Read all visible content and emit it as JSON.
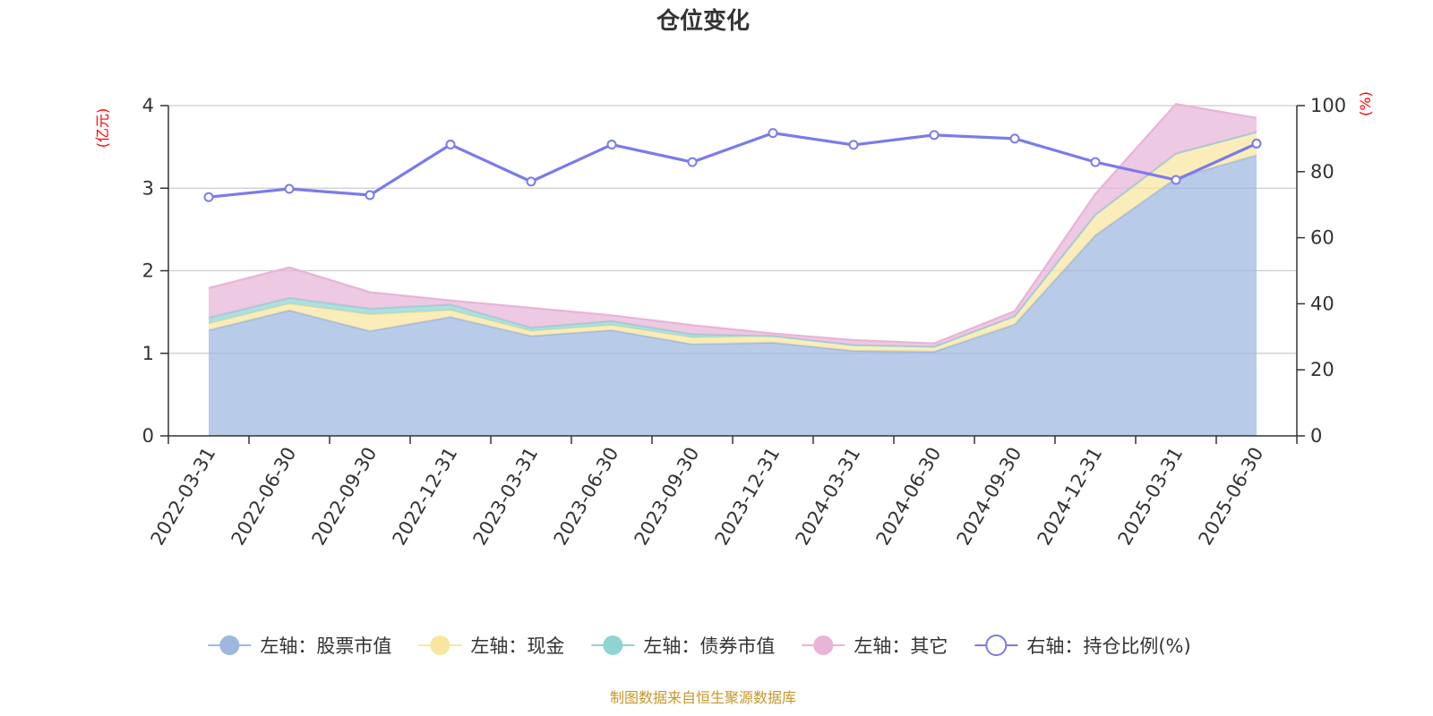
{
  "chart_data": {
    "type": "area",
    "title": "仓位变化",
    "left_axis_unit": "(亿元)",
    "right_axis_unit": "(%)",
    "x": [
      "2022-03-31",
      "2022-06-30",
      "2022-09-30",
      "2022-12-31",
      "2023-03-31",
      "2023-06-30",
      "2023-09-30",
      "2023-12-31",
      "2024-03-31",
      "2024-06-30",
      "2024-09-30",
      "2024-12-31",
      "2025-03-31",
      "2025-06-30"
    ],
    "ylim_left": [
      0,
      4
    ],
    "yticks_left": [
      "0",
      "1",
      "2",
      "3",
      "4"
    ],
    "ylim_right": [
      0,
      100
    ],
    "yticks_right": [
      "0",
      "20",
      "40",
      "60",
      "80",
      "100"
    ],
    "stacked": true,
    "grid": true,
    "legend_position": "bottom",
    "series": [
      {
        "name": "左轴：股票市值",
        "axis": "left",
        "color": "#9db7e0",
        "values": [
          1.28,
          1.52,
          1.27,
          1.44,
          1.21,
          1.28,
          1.11,
          1.13,
          1.03,
          1.02,
          1.35,
          2.43,
          3.12,
          3.4
        ]
      },
      {
        "name": "左轴：现金",
        "axis": "left",
        "color": "#f8e6a0",
        "values": [
          0.08,
          0.08,
          0.2,
          0.08,
          0.06,
          0.06,
          0.08,
          0.08,
          0.07,
          0.06,
          0.1,
          0.25,
          0.3,
          0.28
        ]
      },
      {
        "name": "左轴：债券市值",
        "axis": "left",
        "color": "#8fd3d3",
        "values": [
          0.07,
          0.07,
          0.07,
          0.07,
          0.04,
          0.05,
          0.04,
          0.0,
          0.0,
          0.0,
          0.0,
          0.0,
          0.0,
          0.0
        ]
      },
      {
        "name": "左轴：其它",
        "axis": "left",
        "color": "#e8b4d8",
        "values": [
          0.36,
          0.37,
          0.2,
          0.05,
          0.24,
          0.07,
          0.11,
          0.03,
          0.06,
          0.04,
          0.06,
          0.25,
          0.6,
          0.17
        ]
      },
      {
        "name": "右轴：持仓比例(%)",
        "axis": "right",
        "color": "#7b7bea",
        "kind": "line",
        "values": [
          72.3,
          74.8,
          72.9,
          88.2,
          77.0,
          88.2,
          82.9,
          91.7,
          88.1,
          91.1,
          90.0,
          82.9,
          77.5,
          88.5
        ]
      }
    ]
  },
  "source_note": "制图数据来自恒生聚源数据库"
}
